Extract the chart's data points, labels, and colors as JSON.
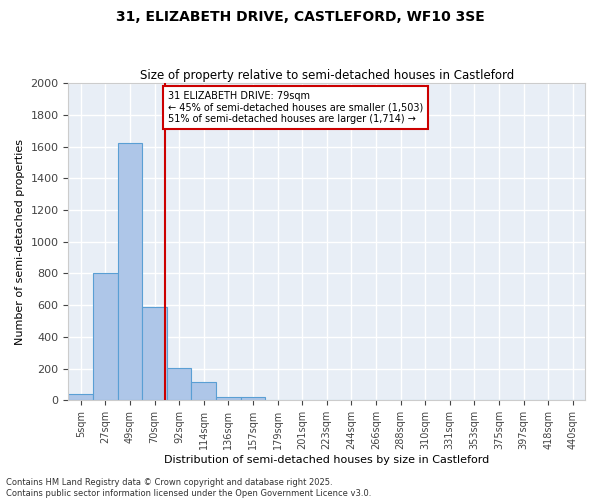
{
  "title1": "31, ELIZABETH DRIVE, CASTLEFORD, WF10 3SE",
  "title2": "Size of property relative to semi-detached houses in Castleford",
  "xlabel": "Distribution of semi-detached houses by size in Castleford",
  "ylabel": "Number of semi-detached properties",
  "bar_categories": [
    "5sqm",
    "27sqm",
    "49sqm",
    "70sqm",
    "92sqm",
    "114sqm",
    "136sqm",
    "157sqm",
    "179sqm",
    "201sqm",
    "223sqm",
    "244sqm",
    "266sqm",
    "288sqm",
    "310sqm",
    "331sqm",
    "353sqm",
    "375sqm",
    "397sqm",
    "418sqm",
    "440sqm"
  ],
  "bar_values": [
    40,
    800,
    1620,
    590,
    205,
    115,
    20,
    20,
    0,
    0,
    0,
    0,
    0,
    0,
    0,
    0,
    0,
    0,
    0,
    0,
    0
  ],
  "bar_color": "#aec6e8",
  "bar_edge_color": "#5a9fd4",
  "background_color": "#e8eef6",
  "grid_color": "#ffffff",
  "annotation_line1": "31 ELIZABETH DRIVE: 79sqm",
  "annotation_line2": "← 45% of semi-detached houses are smaller (1,503)",
  "annotation_line3": "51% of semi-detached houses are larger (1,714) →",
  "annotation_box_color": "#ffffff",
  "annotation_box_edge": "#cc0000",
  "ylim": [
    0,
    2000
  ],
  "yticks": [
    0,
    200,
    400,
    600,
    800,
    1000,
    1200,
    1400,
    1600,
    1800,
    2000
  ],
  "footer1": "Contains HM Land Registry data © Crown copyright and database right 2025.",
  "footer2": "Contains public sector information licensed under the Open Government Licence v3.0."
}
